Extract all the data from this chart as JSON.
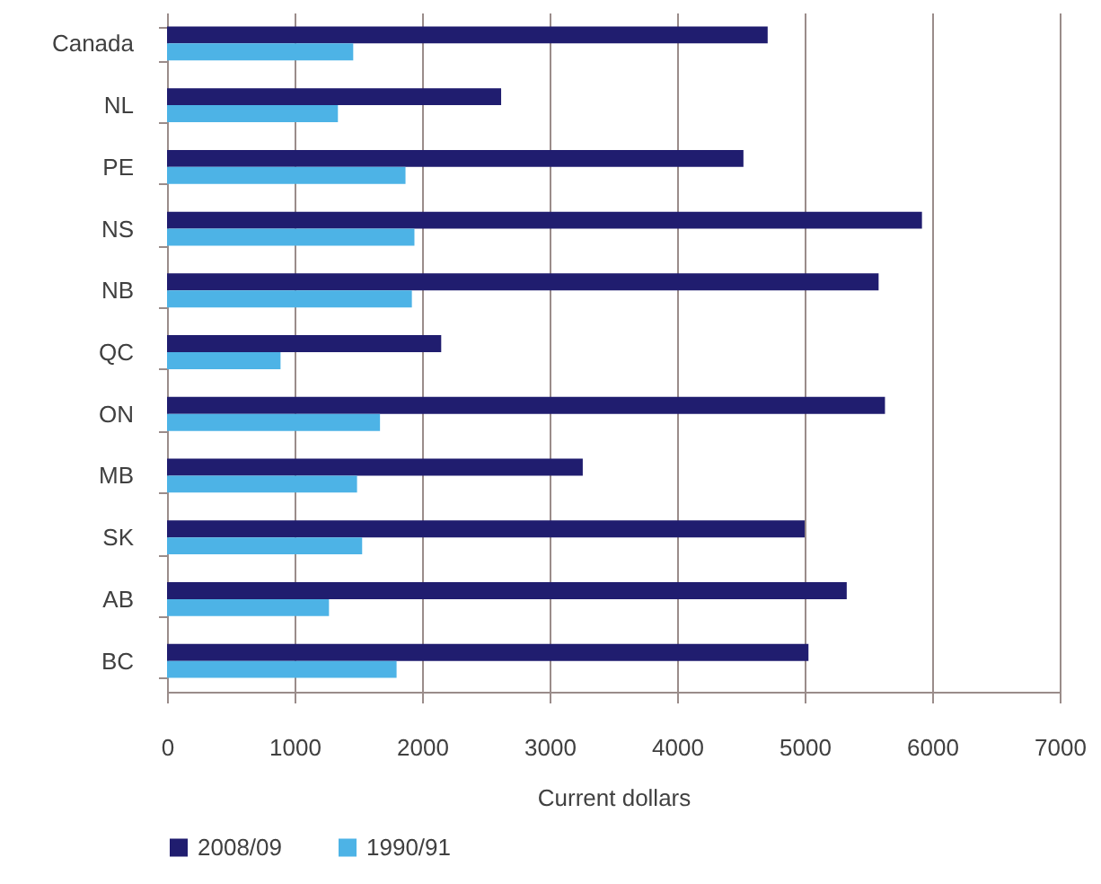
{
  "chart_data": {
    "type": "bar",
    "orientation": "horizontal",
    "categories": [
      "Canada",
      "NL",
      "PE",
      "NS",
      "NB",
      "QC",
      "ON",
      "MB",
      "SK",
      "AB",
      "BC"
    ],
    "series": [
      {
        "name": "2008/09",
        "color": "#201d6f",
        "values": [
          4710,
          2620,
          4520,
          5920,
          5580,
          2150,
          5630,
          3260,
          5000,
          5330,
          5030
        ]
      },
      {
        "name": "1990/91",
        "color": "#4db3e6",
        "values": [
          1460,
          1340,
          1870,
          1940,
          1920,
          890,
          1670,
          1490,
          1530,
          1270,
          1800
        ]
      }
    ],
    "xlabel": "Current dollars",
    "xlim": [
      0,
      7000
    ],
    "xticks": [
      0,
      1000,
      2000,
      3000,
      4000,
      5000,
      6000,
      7000
    ],
    "grid": "x",
    "legend": "bottom"
  }
}
